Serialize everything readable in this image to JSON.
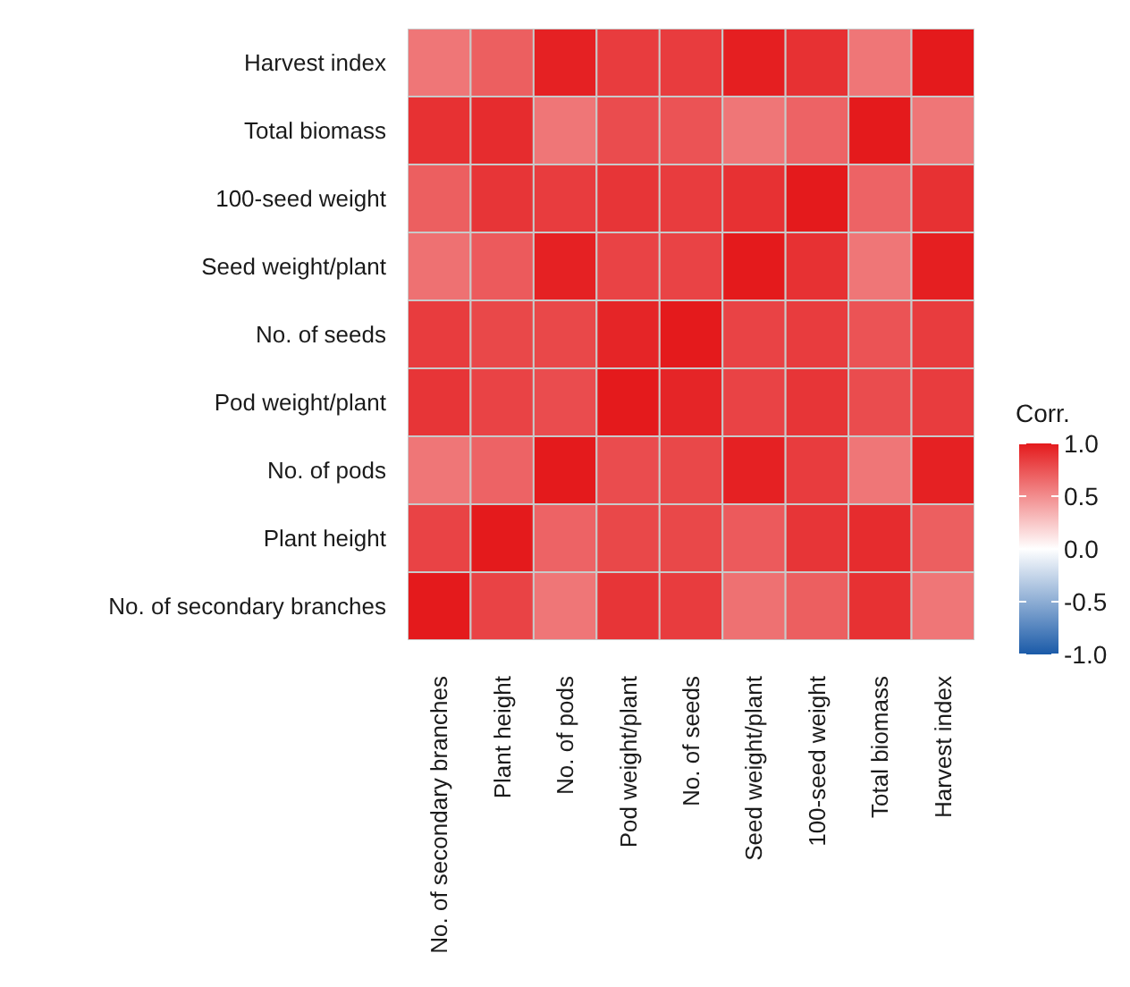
{
  "chart_data": {
    "type": "heatmap",
    "clabel": "Corr.",
    "categories": [
      "No. of secondary branches",
      "Plant height",
      "No. of pods",
      "Pod weight/plant",
      "No. of seeds",
      "Seed weight/plant",
      "100-seed weight",
      "Total biomass",
      "Harvest index"
    ],
    "y_categories": [
      "Harvest index",
      "Total biomass",
      "100-seed weight",
      "Seed weight/plant",
      "No. of seeds",
      "Pod weight/plant",
      "No. of pods",
      "Plant height",
      "No. of secondary branches"
    ],
    "cells": [
      [
        0.6,
        0.7,
        0.97,
        0.85,
        0.85,
        0.98,
        0.9,
        0.6,
        1
      ],
      [
        0.9,
        0.92,
        0.6,
        0.78,
        0.75,
        0.6,
        0.68,
        1,
        0.6
      ],
      [
        0.7,
        0.88,
        0.85,
        0.88,
        0.85,
        0.9,
        1,
        0.68,
        0.9
      ],
      [
        0.62,
        0.72,
        0.97,
        0.82,
        0.82,
        1,
        0.9,
        0.6,
        0.98
      ],
      [
        0.85,
        0.8,
        0.8,
        0.95,
        1,
        0.82,
        0.85,
        0.75,
        0.85
      ],
      [
        0.88,
        0.82,
        0.78,
        1,
        0.95,
        0.82,
        0.88,
        0.78,
        0.85
      ],
      [
        0.6,
        0.68,
        1,
        0.78,
        0.8,
        0.97,
        0.85,
        0.6,
        0.97
      ],
      [
        0.82,
        1,
        0.68,
        0.8,
        0.8,
        0.72,
        0.88,
        0.92,
        0.7
      ],
      [
        1,
        0.82,
        0.6,
        0.88,
        0.85,
        0.62,
        0.7,
        0.9,
        0.6
      ]
    ],
    "clim": [
      -1,
      1
    ],
    "cticks": [
      {
        "value": -1,
        "label": "-1.0"
      },
      {
        "value": -0.5,
        "label": "-0.5"
      },
      {
        "value": 0,
        "label": "0.0"
      },
      {
        "value": 0.5,
        "label": "0.5"
      },
      {
        "value": 1,
        "label": "1.0"
      }
    ]
  }
}
